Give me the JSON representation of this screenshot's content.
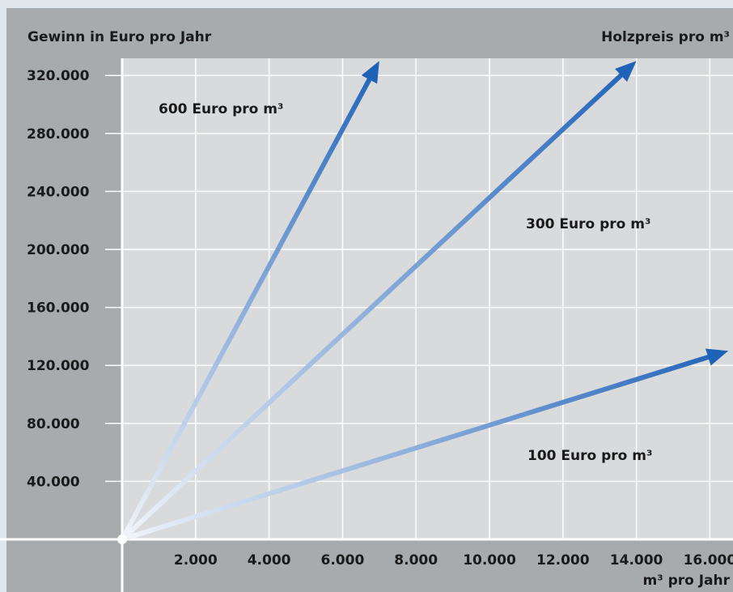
{
  "chart_data": {
    "type": "line",
    "y_title": "Gewinn in Euro pro Jahr",
    "legend_title": "Holzpreis pro m³",
    "x_title": "m³ pro Jahr",
    "x_ticks": [
      2000,
      4000,
      6000,
      8000,
      10000,
      12000,
      14000,
      16000
    ],
    "x_tick_labels": [
      "2.000",
      "4.000",
      "6.000",
      "8.000",
      "10.000",
      "12.000",
      "14.000",
      "16.000"
    ],
    "y_ticks": [
      40000,
      80000,
      120000,
      160000,
      200000,
      240000,
      280000,
      320000
    ],
    "y_tick_labels": [
      "40.000",
      "80.000",
      "120.000",
      "160.000",
      "200.000",
      "240.000",
      "280.000",
      "320.000"
    ],
    "xlim": [
      0,
      16000
    ],
    "ylim": [
      0,
      320000
    ],
    "grid": true,
    "series": [
      {
        "name": "600 Euro pro m³",
        "x": [
          0,
          7000
        ],
        "y": [
          0,
          330000
        ]
      },
      {
        "name": "300 Euro pro m³",
        "x": [
          0,
          14000
        ],
        "y": [
          0,
          330000
        ]
      },
      {
        "name": "100 Euro pro m³",
        "x": [
          0,
          16500
        ],
        "y": [
          0,
          130000
        ]
      }
    ],
    "colors": {
      "frame": "#a8abae",
      "plot_bg": "#d9dadc",
      "axis_line": "#ffffff",
      "arrow_start": "#f2f5fb",
      "arrow_end": "#1f63b8"
    }
  }
}
